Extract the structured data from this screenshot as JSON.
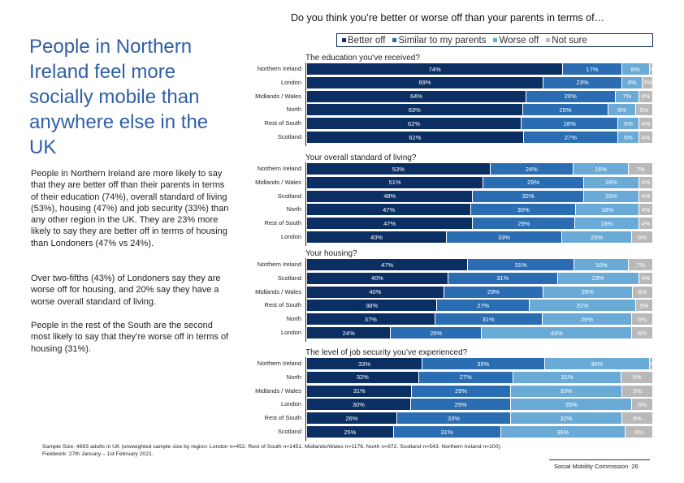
{
  "question_title": "Do you think you’re better or worse off than your parents in terms of…",
  "headline": "People in Northern Ireland feel more socially mobile than anywhere else in the UK",
  "paragraphs": [
    "People in Northern Ireland are more likely to say that they are better off than their parents in terms of their education (74%), overall standard of living (53%), housing (47%) and job security (33%) than any other region in the UK. They are 23% more likely to say they are better off in terms of housing than Londoners (47% vs 24%).",
    "Over two-fifths (43%) of Londoners say they are worse off for housing, and 20% say they have a worse overall standard of living.",
    "People in the rest of the South are the second most likely to say that they’re worse off in terms of housing (31%)."
  ],
  "footnote": {
    "sample": "Sample Size: 4693 adults in UK (unweighted sample size by region: London n=452. Rest of South n=1451. Midlands/Wales n=1176. North n=972. Scotland n=543. Northern Ireland n=100).",
    "fieldwork": "Fieldwork: 27th January – 1st February 2021."
  },
  "brand": "Social Mobility Commission",
  "page_number": "26",
  "chart_data": {
    "type": "bar",
    "orientation": "horizontal",
    "stacked": true,
    "legend": {
      "placement": "top",
      "entries": [
        "Better off",
        "Similar to my parents",
        "Worse off",
        "Not sure"
      ]
    },
    "colors": [
      "#0b2e63",
      "#2a6db2",
      "#6aaad6",
      "#b9b9b9"
    ],
    "panels": [
      {
        "title": "The education you've received?",
        "categories": [
          "Northern Ireland",
          "London",
          "Midlands / Wales",
          "North",
          "Rest of South",
          "Scotland"
        ],
        "series": [
          {
            "name": "Better off",
            "values": [
              74,
              69,
              64,
              63,
              62,
              62
            ]
          },
          {
            "name": "Similar to my parents",
            "values": [
              17,
              23,
              26,
              25,
              28,
              27
            ]
          },
          {
            "name": "Worse off",
            "values": [
              8,
              6,
              7,
              8,
              6,
              6
            ]
          },
          {
            "name": "Not sure",
            "values": [
              1,
              3,
              4,
              5,
              4,
              4
            ]
          }
        ]
      },
      {
        "title": "Your overall standard of living?",
        "categories": [
          "Northern Ireland",
          "Midlands / Wales",
          "Scotland",
          "North",
          "Rest of South",
          "London"
        ],
        "series": [
          {
            "name": "Better off",
            "values": [
              53,
              51,
              48,
              47,
              47,
              40
            ]
          },
          {
            "name": "Similar to my parents",
            "values": [
              24,
              29,
              32,
              30,
              29,
              33
            ]
          },
          {
            "name": "Worse off",
            "values": [
              16,
              16,
              16,
              18,
              18,
              20
            ]
          },
          {
            "name": "Not sure",
            "values": [
              7,
              4,
              4,
              4,
              4,
              6
            ]
          }
        ]
      },
      {
        "title": "Your housing?",
        "categories": [
          "Northern Ireland",
          "Scotland",
          "Midlands / Wales",
          "Rest of South",
          "North",
          "London"
        ],
        "series": [
          {
            "name": "Better off",
            "values": [
              47,
              40,
              40,
              38,
              37,
              24
            ]
          },
          {
            "name": "Similar to my parents",
            "values": [
              31,
              31,
              29,
              27,
              31,
              26
            ]
          },
          {
            "name": "Worse off",
            "values": [
              16,
              23,
              26,
              31,
              26,
              43
            ]
          },
          {
            "name": "Not sure",
            "values": [
              7,
              4,
              6,
              5,
              6,
              6
            ]
          }
        ]
      },
      {
        "title": "The level of job security you've experienced?",
        "categories": [
          "Northern Ireland",
          "North",
          "Midlands / Wales",
          "London",
          "Rest of South",
          "Scotland"
        ],
        "series": [
          {
            "name": "Better off",
            "values": [
              33,
              32,
              31,
              30,
              26,
              25
            ]
          },
          {
            "name": "Similar to my parents",
            "values": [
              35,
              27,
              29,
              29,
              33,
              31
            ]
          },
          {
            "name": "Worse off",
            "values": [
              30,
              31,
              33,
              35,
              32,
              36
            ]
          },
          {
            "name": "Not sure",
            "values": [
              1,
              9,
              9,
              6,
              9,
              8
            ]
          }
        ]
      }
    ]
  }
}
